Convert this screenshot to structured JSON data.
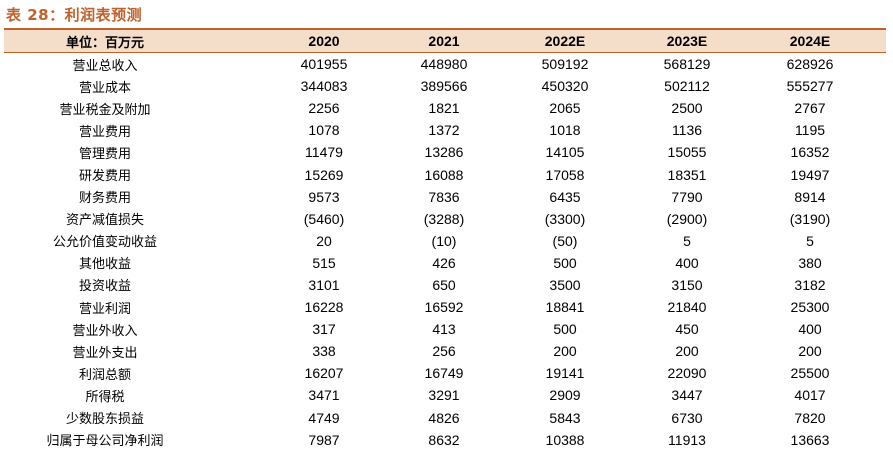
{
  "title": "表 28：利润表预测",
  "header": {
    "unit": "单位：百万元",
    "years": [
      "2020",
      "2021",
      "2022E",
      "2023E",
      "2024E"
    ]
  },
  "rows": [
    {
      "label": "营业总收入",
      "values": [
        "401955",
        "448980",
        "509192",
        "568129",
        "628926"
      ]
    },
    {
      "label": "营业成本",
      "values": [
        "344083",
        "389566",
        "450320",
        "502112",
        "555277"
      ]
    },
    {
      "label": "营业税金及附加",
      "values": [
        "2256",
        "1821",
        "2065",
        "2500",
        "2767"
      ]
    },
    {
      "label": "营业费用",
      "values": [
        "1078",
        "1372",
        "1018",
        "1136",
        "1195"
      ]
    },
    {
      "label": "管理费用",
      "values": [
        "11479",
        "13286",
        "14105",
        "15055",
        "16352"
      ]
    },
    {
      "label": "研发费用",
      "values": [
        "15269",
        "16088",
        "17058",
        "18351",
        "19497"
      ]
    },
    {
      "label": "财务费用",
      "values": [
        "9573",
        "7836",
        "6435",
        "7790",
        "8914"
      ]
    },
    {
      "label": "资产减值损失",
      "values": [
        "(5460)",
        "(3288)",
        "(3300)",
        "(2900)",
        "(3190)"
      ]
    },
    {
      "label": "公允价值变动收益",
      "values": [
        "20",
        "(10)",
        "(50)",
        "5",
        "5"
      ]
    },
    {
      "label": "其他收益",
      "values": [
        "515",
        "426",
        "500",
        "400",
        "380"
      ]
    },
    {
      "label": "投资收益",
      "values": [
        "3101",
        "650",
        "3500",
        "3150",
        "3182"
      ]
    },
    {
      "label": "营业利润",
      "values": [
        "16228",
        "16592",
        "18841",
        "21840",
        "25300"
      ]
    },
    {
      "label": "营业外收入",
      "values": [
        "317",
        "413",
        "500",
        "450",
        "400"
      ]
    },
    {
      "label": "营业外支出",
      "values": [
        "338",
        "256",
        "200",
        "200",
        "200"
      ]
    },
    {
      "label": "利润总额",
      "values": [
        "16207",
        "16749",
        "19141",
        "22090",
        "25500"
      ]
    },
    {
      "label": "所得税",
      "values": [
        "3471",
        "3291",
        "2909",
        "3447",
        "4017"
      ]
    },
    {
      "label": "少数股东损益",
      "values": [
        "4749",
        "4826",
        "5843",
        "6730",
        "7820"
      ]
    },
    {
      "label": "归属于母公司净利润",
      "values": [
        "7987",
        "8632",
        "10388",
        "11913",
        "13663"
      ]
    }
  ]
}
